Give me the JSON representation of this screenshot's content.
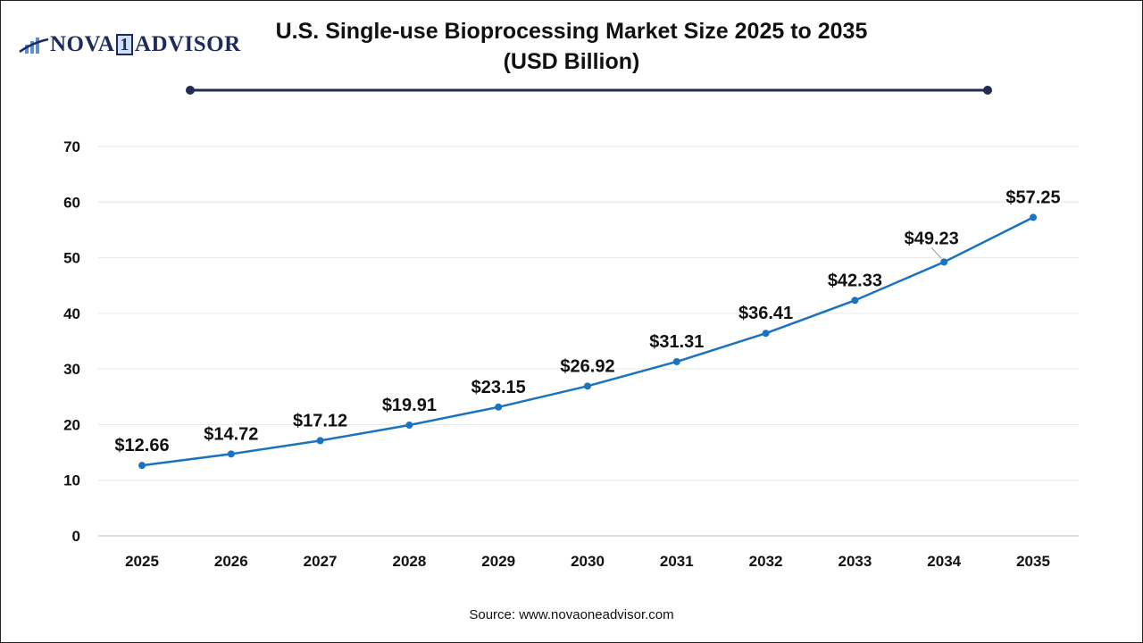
{
  "logo": {
    "text_left": "NOVA",
    "text_mid": "1",
    "text_right": "ADVISOR"
  },
  "source": "Source: www.novaoneadvisor.com",
  "colors": {
    "line": "#1a73c1",
    "title_rule": "#232b52",
    "grid": "#e6e6e6"
  },
  "chart_data": {
    "type": "line",
    "title_line1": "U.S. Single-use Bioprocessing Market Size 2025 to 2035",
    "title_line2": "(USD Billion)",
    "categories": [
      "2025",
      "2026",
      "2027",
      "2028",
      "2029",
      "2030",
      "2031",
      "2032",
      "2033",
      "2034",
      "2035"
    ],
    "values": [
      12.66,
      14.72,
      17.12,
      19.91,
      23.15,
      26.92,
      31.31,
      36.41,
      42.33,
      49.23,
      57.25
    ],
    "data_labels": [
      "$12.66",
      "$14.72",
      "$17.12",
      "$19.91",
      "$23.15",
      "$26.92",
      "$31.31",
      "$36.41",
      "$42.33",
      "$49.23",
      "$57.25"
    ],
    "yticks": [
      0,
      10,
      20,
      30,
      40,
      50,
      60,
      70
    ],
    "ylim": [
      0,
      70
    ],
    "grid": true,
    "xlabel": "",
    "ylabel": ""
  }
}
